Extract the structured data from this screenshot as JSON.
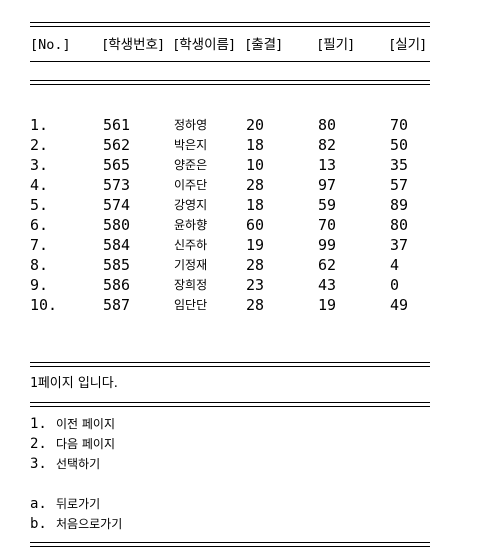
{
  "header": {
    "col_no": "[No.]",
    "col_id": "[학생번호]",
    "col_name": "[학생이름]",
    "col_attendance": "[출결]",
    "col_written": "[필기]",
    "col_practical": "[실기]"
  },
  "rows": [
    {
      "no": "1.",
      "id": "561",
      "name": "정하영",
      "attendance": "20",
      "written": "80",
      "practical": "70"
    },
    {
      "no": "2.",
      "id": "562",
      "name": "박은지",
      "attendance": "18",
      "written": "82",
      "practical": "50"
    },
    {
      "no": "3.",
      "id": "565",
      "name": "양준은",
      "attendance": "10",
      "written": "13",
      "practical": "35"
    },
    {
      "no": "4.",
      "id": "573",
      "name": "이주단",
      "attendance": "28",
      "written": "97",
      "practical": "57"
    },
    {
      "no": "5.",
      "id": "574",
      "name": "강영지",
      "attendance": "18",
      "written": "59",
      "practical": "89"
    },
    {
      "no": "6.",
      "id": "580",
      "name": "윤하향",
      "attendance": "60",
      "written": "70",
      "practical": "80"
    },
    {
      "no": "7.",
      "id": "584",
      "name": "신주하",
      "attendance": "19",
      "written": "99",
      "practical": "37"
    },
    {
      "no": "8.",
      "id": "585",
      "name": "기정재",
      "attendance": "28",
      "written": "62",
      "practical": "4"
    },
    {
      "no": "9.",
      "id": "586",
      "name": "장희정",
      "attendance": "23",
      "written": "43",
      "practical": "0"
    },
    {
      "no": "10.",
      "id": "587",
      "name": "임단단",
      "attendance": "28",
      "written": "19",
      "practical": "49"
    }
  ],
  "page_info": {
    "page_number": "1",
    "suffix": "페이지 입니다."
  },
  "menu": {
    "primary": [
      {
        "key": "1.",
        "label": "이전 페이지"
      },
      {
        "key": "2.",
        "label": "다음 페이지"
      },
      {
        "key": "3.",
        "label": "선택하기"
      }
    ],
    "secondary": [
      {
        "key": "a.",
        "label": "뒤로가기"
      },
      {
        "key": "b.",
        "label": "처음으로가기"
      }
    ]
  }
}
